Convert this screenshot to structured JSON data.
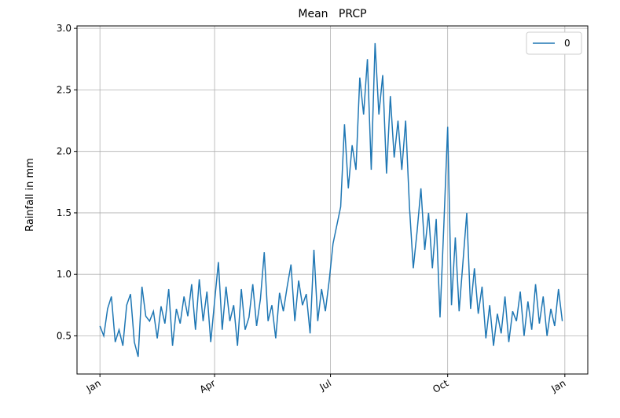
{
  "chart_data": {
    "type": "line",
    "title": "Mean   PRCP",
    "y_label": "Rainfall in mm",
    "x": [
      0,
      3,
      6,
      9,
      12,
      15,
      18,
      21,
      24,
      27,
      30,
      33,
      36,
      39,
      42,
      45,
      48,
      51,
      54,
      57,
      60,
      63,
      66,
      69,
      72,
      75,
      78,
      81,
      84,
      87,
      90,
      93,
      96,
      99,
      102,
      105,
      108,
      111,
      114,
      117,
      120,
      123,
      126,
      129,
      132,
      135,
      138,
      141,
      144,
      147,
      150,
      153,
      156,
      159,
      162,
      165,
      168,
      171,
      174,
      177,
      180,
      183,
      186,
      189,
      192,
      195,
      198,
      201,
      204,
      207,
      210,
      213,
      216,
      219,
      222,
      225,
      228,
      231,
      234,
      237,
      240,
      243,
      246,
      249,
      252,
      255,
      258,
      261,
      264,
      267,
      270,
      273,
      276,
      279,
      282,
      285,
      288,
      291,
      294,
      297,
      300,
      303,
      306,
      309,
      312,
      315,
      318,
      321,
      324,
      327,
      330,
      333,
      336,
      339,
      342,
      345,
      348,
      351,
      354,
      357,
      360,
      363
    ],
    "series": [
      {
        "name": "0",
        "color": "#1f77b4",
        "values": [
          0.58,
          0.5,
          0.72,
          0.82,
          0.45,
          0.55,
          0.42,
          0.75,
          0.84,
          0.45,
          0.33,
          0.9,
          0.66,
          0.62,
          0.7,
          0.48,
          0.74,
          0.6,
          0.88,
          0.42,
          0.72,
          0.6,
          0.82,
          0.66,
          0.92,
          0.55,
          0.96,
          0.62,
          0.86,
          0.45,
          0.78,
          1.1,
          0.55,
          0.9,
          0.62,
          0.75,
          0.42,
          0.88,
          0.55,
          0.65,
          0.92,
          0.58,
          0.8,
          1.18,
          0.62,
          0.75,
          0.48,
          0.85,
          0.7,
          0.9,
          1.08,
          0.62,
          0.95,
          0.75,
          0.84,
          0.52,
          1.2,
          0.62,
          0.88,
          0.7,
          0.95,
          1.25,
          1.4,
          1.55,
          2.22,
          1.7,
          2.05,
          1.85,
          2.6,
          2.3,
          2.75,
          1.85,
          2.88,
          2.3,
          2.62,
          1.82,
          2.45,
          1.95,
          2.25,
          1.85,
          2.25,
          1.55,
          1.05,
          1.35,
          1.7,
          1.2,
          1.5,
          1.05,
          1.45,
          0.65,
          1.4,
          2.2,
          0.75,
          1.3,
          0.7,
          1.1,
          1.5,
          0.72,
          1.05,
          0.68,
          0.9,
          0.48,
          0.75,
          0.42,
          0.68,
          0.52,
          0.82,
          0.45,
          0.7,
          0.62,
          0.86,
          0.5,
          0.78,
          0.55,
          0.92,
          0.6,
          0.82,
          0.5,
          0.72,
          0.58,
          0.88,
          0.62
        ]
      }
    ],
    "xlim": [
      -18,
      383
    ],
    "xticks": [
      {
        "value": 0,
        "label": "Jan"
      },
      {
        "value": 90,
        "label": "Apr"
      },
      {
        "value": 181,
        "label": "Jul"
      },
      {
        "value": 273,
        "label": "Oct"
      },
      {
        "value": 365,
        "label": "Jan"
      }
    ],
    "ylim": [
      0.19,
      3.02
    ],
    "yticks": [
      0.5,
      {
        "value": 1.0,
        "label": "1.0"
      },
      1.5,
      {
        "value": 2.0,
        "label": "2.0"
      },
      2.5,
      {
        "value": 3.0,
        "label": "3.0"
      }
    ],
    "grid": true,
    "legend": "upper right"
  }
}
